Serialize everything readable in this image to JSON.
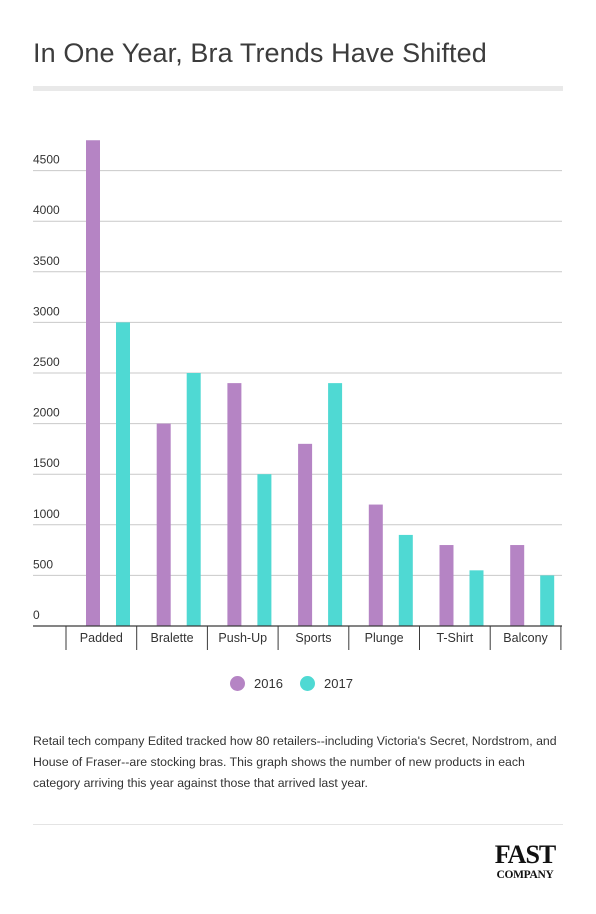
{
  "header": {
    "title": "In One Year, Bra Trends Have Shifted"
  },
  "chart_data": {
    "type": "bar",
    "title": "In One Year, Bra Trends Have Shifted",
    "xlabel": "",
    "ylabel": "",
    "categories": [
      "Padded",
      "Bralette",
      "Push-Up",
      "Sports",
      "Plunge",
      "T-Shirt",
      "Balcony"
    ],
    "series": [
      {
        "name": "2016",
        "color": "#b584c4",
        "values": [
          4800,
          2000,
          2400,
          1800,
          1200,
          800,
          800
        ]
      },
      {
        "name": "2017",
        "color": "#4fd9d3",
        "values": [
          3000,
          2500,
          1500,
          2400,
          900,
          550,
          500
        ]
      }
    ],
    "yticks": [
      "0",
      "500",
      "1000",
      "1500",
      "2000",
      "2500",
      "3000",
      "3500",
      "4000",
      "4500"
    ],
    "ylim": [
      0,
      5000
    ],
    "grid": true,
    "legend_position": "bottom"
  },
  "description": "Retail tech company Edited tracked how 80 retailers--including Victoria's Secret, Nordstrom, and House of Fraser--are stocking bras. This graph shows the number of new products in each category arriving this year against those that arrived last year.",
  "footer": {
    "logo_top": "FAST",
    "logo_bottom": "COMPANY"
  },
  "colors": {
    "series_2016": "#b584c4",
    "series_2017": "#4fd9d3",
    "grid": "#c9c9c9",
    "axis": "#3a3a3a"
  }
}
